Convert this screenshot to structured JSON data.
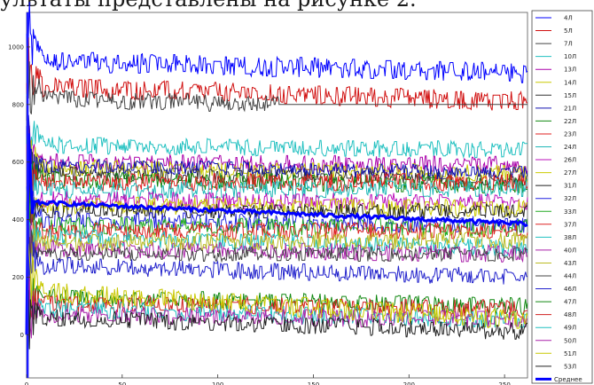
{
  "header": {
    "text": "ультаты представлены на рисунке 2."
  },
  "chart_data": {
    "type": "line",
    "title": "",
    "xlabel": "",
    "ylabel": "",
    "xlim": [
      0,
      262
    ],
    "ylim": [
      -150,
      1120
    ],
    "x_ticks": [
      0,
      50,
      100,
      150,
      200,
      250
    ],
    "y_ticks": [
      0,
      200,
      400,
      600,
      800,
      1000
    ],
    "grid": false,
    "legend_position": "right",
    "series": [
      {
        "name": "4Л",
        "color": "#0000ff",
        "level": 950,
        "noise": 35,
        "end": 262,
        "start": 1000,
        "drift": -40
      },
      {
        "name": "5Л",
        "color": "#d11111",
        "level": 860,
        "noise": 35,
        "end": 262,
        "start": 900,
        "drift": -50
      },
      {
        "name": "7Л",
        "color": "#444444",
        "level": 820,
        "noise": 30,
        "end": 132,
        "start": 860,
        "drift": -40,
        "tail": 800
      },
      {
        "name": "10Л",
        "color": "#20c0c0",
        "level": 660,
        "noise": 30,
        "end": 262,
        "start": 690,
        "drift": -20
      },
      {
        "name": "13Л",
        "color": "#aa00aa",
        "level": 600,
        "noise": 30,
        "end": 262,
        "start": 610,
        "drift": -10
      },
      {
        "name": "14Л",
        "color": "#c8c800",
        "level": 580,
        "noise": 30,
        "end": 262,
        "start": 600,
        "drift": -20
      },
      {
        "name": "15Л",
        "color": "#333333",
        "level": 560,
        "noise": 25,
        "end": 262,
        "start": 575,
        "drift": -20
      },
      {
        "name": "21Л",
        "color": "#1010b0",
        "level": 590,
        "noise": 25,
        "end": 262,
        "start": 600,
        "drift": -30
      },
      {
        "name": "22Л",
        "color": "#118811",
        "level": 540,
        "noise": 30,
        "end": 262,
        "start": 560,
        "drift": -20
      },
      {
        "name": "23Л",
        "color": "#e02020",
        "level": 530,
        "noise": 30,
        "end": 262,
        "start": 540,
        "drift": 0
      },
      {
        "name": "24Л",
        "color": "#20b8b8",
        "level": 500,
        "noise": 30,
        "end": 262,
        "start": 510,
        "drift": 10
      },
      {
        "name": "26Л",
        "color": "#bb11bb",
        "level": 470,
        "noise": 30,
        "end": 262,
        "start": 480,
        "drift": -10
      },
      {
        "name": "27Л",
        "color": "#cccc00",
        "level": 450,
        "noise": 30,
        "end": 262,
        "start": 460,
        "drift": -10
      },
      {
        "name": "31Л",
        "color": "#222222",
        "level": 430,
        "noise": 25,
        "end": 262,
        "start": 440,
        "drift": 0
      },
      {
        "name": "32Л",
        "color": "#2020e0",
        "level": 400,
        "noise": 30,
        "end": 262,
        "start": 420,
        "drift": -20
      },
      {
        "name": "33Л",
        "color": "#22aa22",
        "level": 380,
        "noise": 30,
        "end": 262,
        "start": 390,
        "drift": -10
      },
      {
        "name": "37Л",
        "color": "#dd2222",
        "level": 360,
        "noise": 30,
        "end": 262,
        "start": 370,
        "drift": 0
      },
      {
        "name": "38Л",
        "color": "#20c0c0",
        "level": 340,
        "noise": 30,
        "end": 262,
        "start": 350,
        "drift": -40
      },
      {
        "name": "40Л",
        "color": "#aa22aa",
        "level": 300,
        "noise": 30,
        "end": 262,
        "start": 300,
        "drift": -20
      },
      {
        "name": "43Л",
        "color": "#bbbb22",
        "level": 320,
        "noise": 30,
        "end": 262,
        "start": 330,
        "drift": 10
      },
      {
        "name": "44Л",
        "color": "#444444",
        "level": 280,
        "noise": 25,
        "end": 262,
        "start": 290,
        "drift": 0
      },
      {
        "name": "46Л",
        "color": "#2222cc",
        "level": 240,
        "noise": 30,
        "end": 262,
        "start": 250,
        "drift": -40
      },
      {
        "name": "47Л",
        "color": "#118811",
        "level": 130,
        "noise": 30,
        "end": 262,
        "start": 130,
        "drift": -30
      },
      {
        "name": "48Л",
        "color": "#d12020",
        "level": 110,
        "noise": 30,
        "end": 262,
        "start": 120,
        "drift": -20
      },
      {
        "name": "49Л",
        "color": "#20c0c0",
        "level": 90,
        "noise": 30,
        "end": 262,
        "start": 100,
        "drift": -40
      },
      {
        "name": "50Л",
        "color": "#aa22aa",
        "level": 70,
        "noise": 30,
        "end": 262,
        "start": 90,
        "drift": -20
      },
      {
        "name": "51Л",
        "color": "#c8c800",
        "level": 150,
        "noise": 35,
        "end": 262,
        "start": 180,
        "drift": -100
      },
      {
        "name": "53Л",
        "color": "#222222",
        "level": 60,
        "noise": 30,
        "end": 262,
        "start": 70,
        "drift": -50
      }
    ],
    "average": {
      "name": "Среднее",
      "color": "#0000ff",
      "start": 460,
      "end_value": 385
    }
  }
}
